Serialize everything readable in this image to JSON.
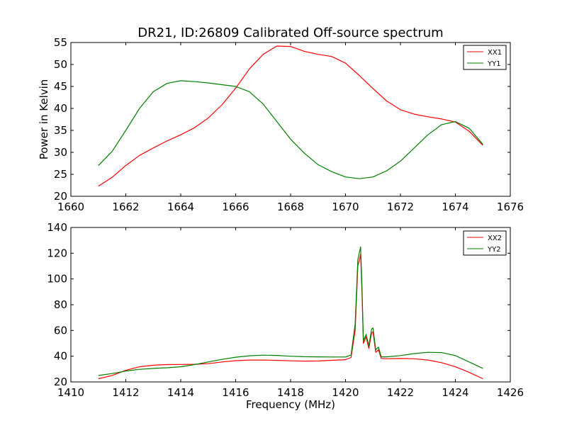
{
  "page": {
    "width": 800,
    "height": 600
  },
  "chart_data": [
    {
      "type": "line",
      "title": "DR21, ID:26809 Calibrated Off-source spectrum",
      "xlabel": "",
      "ylabel": "Power in Kelvin",
      "xlim": [
        1660,
        1676
      ],
      "ylim": [
        20,
        55
      ],
      "xticks": [
        1660,
        1662,
        1664,
        1666,
        1668,
        1670,
        1672,
        1674,
        1676
      ],
      "yticks": [
        20,
        25,
        30,
        35,
        40,
        45,
        50,
        55
      ],
      "legend": {
        "position": "top-right"
      },
      "series": [
        {
          "name": "XX1",
          "color": "#ff0000",
          "points": [
            [
              1661.0,
              22.3
            ],
            [
              1661.5,
              24.3
            ],
            [
              1662.0,
              27.0
            ],
            [
              1662.5,
              29.3
            ],
            [
              1663.0,
              31.0
            ],
            [
              1663.5,
              32.6
            ],
            [
              1664.0,
              34.0
            ],
            [
              1664.5,
              35.6
            ],
            [
              1665.0,
              37.8
            ],
            [
              1665.5,
              40.8
            ],
            [
              1666.0,
              44.6
            ],
            [
              1666.5,
              49.0
            ],
            [
              1667.0,
              52.3
            ],
            [
              1667.5,
              54.2
            ],
            [
              1668.0,
              54.1
            ],
            [
              1668.5,
              53.0
            ],
            [
              1669.0,
              52.3
            ],
            [
              1669.5,
              51.8
            ],
            [
              1670.0,
              50.3
            ],
            [
              1670.5,
              47.5
            ],
            [
              1671.0,
              44.5
            ],
            [
              1671.5,
              41.7
            ],
            [
              1672.0,
              39.7
            ],
            [
              1672.5,
              38.7
            ],
            [
              1673.0,
              38.1
            ],
            [
              1673.5,
              37.6
            ],
            [
              1674.0,
              36.9
            ],
            [
              1674.5,
              34.8
            ],
            [
              1675.0,
              31.6
            ]
          ]
        },
        {
          "name": "YY1",
          "color": "#007f00",
          "points": [
            [
              1661.0,
              27.0
            ],
            [
              1661.5,
              30.2
            ],
            [
              1662.0,
              35.0
            ],
            [
              1662.5,
              40.0
            ],
            [
              1663.0,
              43.8
            ],
            [
              1663.5,
              45.7
            ],
            [
              1664.0,
              46.3
            ],
            [
              1664.5,
              46.1
            ],
            [
              1665.0,
              45.8
            ],
            [
              1665.5,
              45.4
            ],
            [
              1666.0,
              45.0
            ],
            [
              1666.5,
              43.8
            ],
            [
              1667.0,
              41.0
            ],
            [
              1667.5,
              37.0
            ],
            [
              1668.0,
              33.0
            ],
            [
              1668.5,
              29.8
            ],
            [
              1669.0,
              27.2
            ],
            [
              1669.5,
              25.6
            ],
            [
              1670.0,
              24.4
            ],
            [
              1670.5,
              24.0
            ],
            [
              1671.0,
              24.4
            ],
            [
              1671.5,
              25.8
            ],
            [
              1672.0,
              28.0
            ],
            [
              1672.5,
              31.0
            ],
            [
              1673.0,
              34.0
            ],
            [
              1673.5,
              36.3
            ],
            [
              1674.0,
              37.0
            ],
            [
              1674.5,
              35.5
            ],
            [
              1675.0,
              31.8
            ]
          ]
        }
      ]
    },
    {
      "type": "line",
      "title": "",
      "xlabel": "Frequency (MHz)",
      "ylabel": "",
      "xlim": [
        1410,
        1426
      ],
      "ylim": [
        20,
        140
      ],
      "xticks": [
        1410,
        1412,
        1414,
        1416,
        1418,
        1420,
        1422,
        1424,
        1426
      ],
      "yticks": [
        20,
        40,
        60,
        80,
        100,
        120,
        140
      ],
      "legend": {
        "position": "top-right"
      },
      "series": [
        {
          "name": "XX2",
          "color": "#ff0000",
          "points": [
            [
              1411.0,
              22.5
            ],
            [
              1411.5,
              25.0
            ],
            [
              1412.0,
              29.0
            ],
            [
              1412.5,
              31.8
            ],
            [
              1413.0,
              33.0
            ],
            [
              1413.5,
              33.5
            ],
            [
              1414.0,
              33.6
            ],
            [
              1414.5,
              33.7
            ],
            [
              1415.0,
              34.2
            ],
            [
              1415.5,
              35.5
            ],
            [
              1416.0,
              36.5
            ],
            [
              1416.5,
              37.0
            ],
            [
              1417.0,
              37.0
            ],
            [
              1417.5,
              36.8
            ],
            [
              1418.0,
              36.4
            ],
            [
              1418.5,
              36.2
            ],
            [
              1419.0,
              36.3
            ],
            [
              1419.5,
              36.8
            ],
            [
              1420.0,
              37.3
            ],
            [
              1420.2,
              39.0
            ],
            [
              1420.35,
              60.0
            ],
            [
              1420.45,
              110.0
            ],
            [
              1420.55,
              119.0
            ],
            [
              1420.6,
              90.0
            ],
            [
              1420.65,
              50.0
            ],
            [
              1420.75,
              55.0
            ],
            [
              1420.85,
              46.0
            ],
            [
              1420.95,
              58.0
            ],
            [
              1421.0,
              59.0
            ],
            [
              1421.1,
              43.0
            ],
            [
              1421.2,
              45.0
            ],
            [
              1421.3,
              38.3
            ],
            [
              1421.5,
              38.0
            ],
            [
              1422.0,
              38.2
            ],
            [
              1422.5,
              38.0
            ],
            [
              1423.0,
              37.0
            ],
            [
              1423.5,
              35.0
            ],
            [
              1424.0,
              31.8
            ],
            [
              1424.5,
              27.5
            ],
            [
              1425.0,
              22.5
            ]
          ]
        },
        {
          "name": "YY2",
          "color": "#007f00",
          "points": [
            [
              1411.0,
              25.0
            ],
            [
              1411.5,
              26.5
            ],
            [
              1412.0,
              28.5
            ],
            [
              1412.5,
              29.8
            ],
            [
              1413.0,
              30.5
            ],
            [
              1413.5,
              31.0
            ],
            [
              1414.0,
              31.8
            ],
            [
              1414.5,
              33.5
            ],
            [
              1415.0,
              35.5
            ],
            [
              1415.5,
              37.5
            ],
            [
              1416.0,
              39.2
            ],
            [
              1416.5,
              40.3
            ],
            [
              1417.0,
              40.8
            ],
            [
              1417.5,
              40.6
            ],
            [
              1418.0,
              40.0
            ],
            [
              1418.5,
              39.6
            ],
            [
              1419.0,
              39.5
            ],
            [
              1419.5,
              39.4
            ],
            [
              1420.0,
              39.4
            ],
            [
              1420.2,
              41.0
            ],
            [
              1420.35,
              65.0
            ],
            [
              1420.45,
              115.0
            ],
            [
              1420.55,
              125.0
            ],
            [
              1420.6,
              95.0
            ],
            [
              1420.65,
              52.0
            ],
            [
              1420.75,
              57.0
            ],
            [
              1420.85,
              48.0
            ],
            [
              1420.95,
              61.0
            ],
            [
              1421.0,
              62.0
            ],
            [
              1421.1,
              45.0
            ],
            [
              1421.2,
              47.0
            ],
            [
              1421.3,
              39.5
            ],
            [
              1421.5,
              39.5
            ],
            [
              1422.0,
              40.5
            ],
            [
              1422.5,
              42.0
            ],
            [
              1423.0,
              43.0
            ],
            [
              1423.5,
              42.8
            ],
            [
              1424.0,
              40.5
            ],
            [
              1424.5,
              35.5
            ],
            [
              1425.0,
              30.5
            ]
          ]
        }
      ]
    }
  ]
}
